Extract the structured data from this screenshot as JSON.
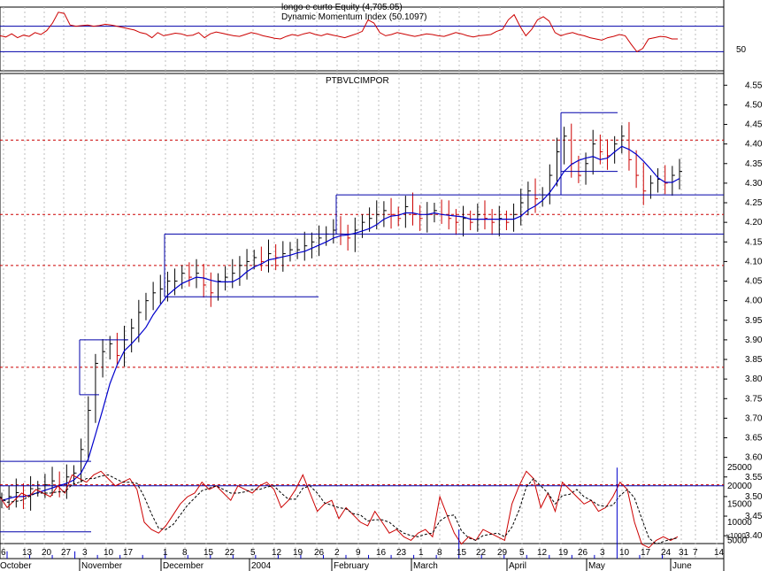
{
  "title": "PTBVLCIMPOR",
  "indicator_top": {
    "line1": "longo e curto Equity (4,705.05)",
    "line2": "Dynamic Momentum Index (50.1097)",
    "tick_label": "50"
  },
  "volume_scale_note": "x1000",
  "chart_data": [
    {
      "type": "line",
      "name": "Dynamic Momentum Index",
      "ylim": [
        0,
        100
      ],
      "hlines": [
        30,
        70
      ],
      "values": [
        55,
        53,
        58,
        52,
        56,
        54,
        60,
        57,
        63,
        75,
        92,
        90,
        72,
        70,
        71,
        72,
        70,
        71,
        73,
        72,
        70,
        68,
        66,
        64,
        60,
        58,
        52,
        60,
        55,
        57,
        59,
        58,
        55,
        56,
        60,
        52,
        58,
        61,
        59,
        57,
        55,
        54,
        57,
        60,
        58,
        55,
        53,
        51,
        50,
        54,
        57,
        55,
        58,
        60,
        57,
        55,
        58,
        56,
        54,
        52,
        55,
        58,
        62,
        80,
        75,
        60,
        55,
        57,
        60,
        58,
        56,
        54,
        56,
        58,
        57,
        55,
        54,
        57,
        60,
        58,
        55,
        53,
        55,
        56,
        57,
        62,
        65,
        80,
        88,
        70,
        55,
        65,
        80,
        85,
        78,
        60,
        55,
        58,
        60,
        57,
        55,
        52,
        50,
        48,
        52,
        54,
        57,
        55,
        42,
        30,
        35,
        50,
        52,
        54,
        53,
        50,
        50
      ],
      "y_ticks": [
        "50"
      ]
    },
    {
      "type": "bar",
      "name": "PTBVLCIMPOR",
      "x_label_dates": [
        "6",
        "13",
        "20",
        "27",
        "3",
        "10",
        "17",
        "1",
        "8",
        "15",
        "22",
        "5",
        "12",
        "19",
        "26",
        "2",
        "9",
        "16",
        "23",
        "1",
        "8",
        "15",
        "22",
        "29",
        "5",
        "12",
        "19",
        "26",
        "3",
        "10",
        "17",
        "24",
        "31",
        "7",
        "14"
      ],
      "months": [
        "October",
        "November",
        "December",
        "2004",
        "February",
        "March",
        "April",
        "May",
        "June"
      ],
      "ylim": [
        3.38,
        4.58
      ],
      "y_ticks": [
        "3.40",
        "3.45",
        "3.50",
        "3.55",
        "3.60",
        "3.65",
        "3.70",
        "3.75",
        "3.80",
        "3.85",
        "3.90",
        "3.95",
        "4.00",
        "4.05",
        "4.10",
        "4.15",
        "4.20",
        "4.25",
        "4.30",
        "4.35",
        "4.40",
        "4.45",
        "4.50",
        "4.55"
      ],
      "close": [
        3.49,
        3.5,
        3.51,
        3.5,
        3.52,
        3.52,
        3.53,
        3.54,
        3.53,
        3.55,
        3.56,
        3.62,
        3.72,
        3.84,
        3.87,
        3.89,
        3.86,
        3.9,
        3.93,
        3.97,
        4.0,
        4.02,
        4.03,
        4.05,
        4.05,
        4.07,
        4.06,
        4.07,
        4.04,
        4.02,
        4.05,
        4.06,
        4.07,
        4.09,
        4.1,
        4.11,
        4.1,
        4.12,
        4.11,
        4.12,
        4.13,
        4.13,
        4.14,
        4.15,
        4.16,
        4.17,
        4.18,
        4.17,
        4.16,
        4.18,
        4.2,
        4.21,
        4.22,
        4.23,
        4.22,
        4.21,
        4.24,
        4.22,
        4.21,
        4.22,
        4.23,
        4.22,
        4.21,
        4.2,
        4.21,
        4.2,
        4.22,
        4.21,
        4.2,
        4.21,
        4.2,
        4.22,
        4.25,
        4.28,
        4.26,
        4.27,
        4.32,
        4.38,
        4.42,
        4.35,
        4.32,
        4.35,
        4.4,
        4.38,
        4.37,
        4.4,
        4.42,
        4.36,
        4.32,
        4.28,
        4.3,
        4.31,
        4.3,
        4.32,
        4.33
      ],
      "resistance_lines": [
        3.59,
        3.9,
        4.17,
        4.27,
        4.48
      ],
      "support_lines": [
        3.41,
        3.76,
        4.01,
        4.17,
        4.33
      ],
      "dashed_levels": [
        3.53,
        3.83,
        4.09,
        4.22,
        4.41
      ],
      "moving_average": "MA"
    },
    {
      "type": "line",
      "name": "Volume",
      "ylim": [
        0,
        27000
      ],
      "y_ticks": [
        "5000",
        "10000",
        "15000",
        "20000",
        "25000"
      ],
      "hline": 20000,
      "series_solid": [
        17000,
        14000,
        16000,
        18000,
        17000,
        19000,
        18000,
        17000,
        20000,
        18000,
        23000,
        22000,
        21000,
        23000,
        24000,
        22000,
        20000,
        21000,
        22000,
        19000,
        10000,
        8000,
        7000,
        9000,
        12000,
        15000,
        17000,
        18000,
        21000,
        19000,
        20000,
        18000,
        16000,
        20000,
        19000,
        18000,
        20000,
        21000,
        19000,
        14000,
        16000,
        19000,
        23000,
        18000,
        13000,
        15000,
        16000,
        11000,
        14000,
        12000,
        10000,
        9000,
        13000,
        10000,
        7000,
        8000,
        6000,
        5000,
        7000,
        8000,
        6000,
        17000,
        12000,
        7000,
        4000,
        6000,
        5000,
        8000,
        7000,
        6000,
        5000,
        15000,
        20000,
        24000,
        22000,
        14000,
        18000,
        13000,
        21000,
        19000,
        17000,
        15000,
        16000,
        13000,
        14000,
        17000,
        21000,
        19000,
        10000,
        4000,
        3000,
        5000,
        6000,
        5000,
        6000
      ],
      "volume_spikes": [
        2,
        1,
        1,
        2,
        1,
        1,
        1,
        2,
        1,
        1,
        1,
        1,
        1,
        1,
        1,
        1,
        1,
        1,
        1,
        1,
        8,
        1,
        1,
        1,
        1,
        1,
        1,
        25,
        1,
        1
      ]
    }
  ]
}
